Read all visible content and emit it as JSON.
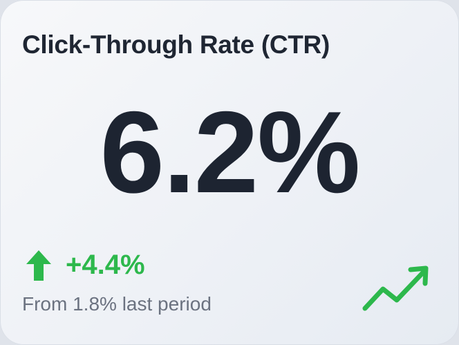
{
  "card": {
    "title": "Click-Through Rate (CTR)",
    "value": "6.2%",
    "change": "+4.4%",
    "comparison": "From 1.8% last period"
  }
}
